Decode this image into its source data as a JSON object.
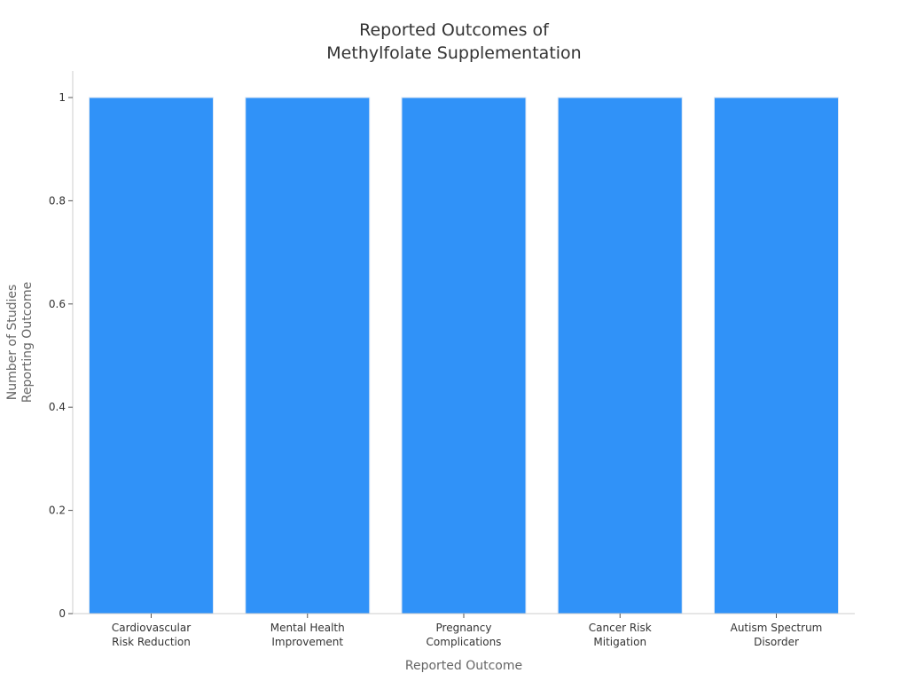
{
  "chart_data": {
    "type": "bar",
    "title": [
      "Reported Outcomes of",
      "Methylfolate Supplementation"
    ],
    "xlabel": "Reported Outcome",
    "ylabel": [
      "Number of Studies",
      "Reporting Outcome"
    ],
    "categories": [
      [
        "Cardiovascular",
        "Risk Reduction"
      ],
      [
        "Mental Health",
        "Improvement"
      ],
      [
        "Pregnancy",
        "Complications"
      ],
      [
        "Cancer Risk",
        "Mitigation"
      ],
      [
        "Autism Spectrum",
        "Disorder"
      ]
    ],
    "values": [
      1,
      1,
      1,
      1,
      1
    ],
    "ylim": [
      0,
      1.05
    ],
    "yticks": [
      0,
      0.2,
      0.4,
      0.6,
      0.8,
      1
    ],
    "ytick_labels": [
      "0",
      "0.2",
      "0.4",
      "0.6",
      "0.8",
      "1"
    ],
    "bar_color": "#3092f8",
    "bar_edge_color": "#d8e6f5",
    "axis_color": "#cccccc",
    "grid": false,
    "legend": "none"
  }
}
